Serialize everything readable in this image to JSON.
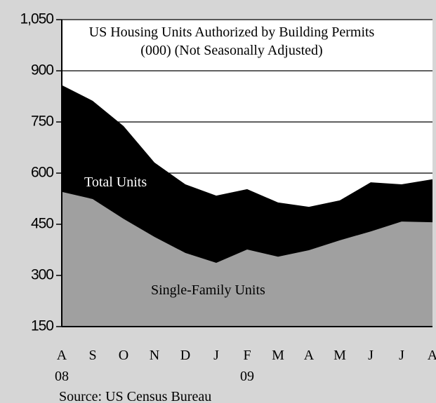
{
  "chart_data": {
    "type": "area",
    "title": "US Housing Units Authorized by Building Permits",
    "subtitle": "(000) (Not Seasonally Adjusted)",
    "categories": [
      "A",
      "S",
      "O",
      "N",
      "D",
      "J",
      "F",
      "M",
      "A",
      "M",
      "J",
      "J",
      "A"
    ],
    "x_group_labels": [
      "08",
      null,
      null,
      null,
      null,
      null,
      "09",
      null,
      null,
      null,
      null,
      null,
      null
    ],
    "series": [
      {
        "name": "Total Units",
        "color": "#000000",
        "values": [
          858,
          812,
          738,
          631,
          567,
          534,
          553,
          514,
          501,
          520,
          573,
          567,
          582
        ]
      },
      {
        "name": "Single-Family Units",
        "color": "#a0a0a0",
        "values": [
          545,
          524,
          466,
          413,
          366,
          337,
          376,
          355,
          374,
          403,
          429,
          458,
          456
        ]
      }
    ],
    "ylim": [
      150,
      1050
    ],
    "yticks": [
      {
        "value": 150,
        "label": "150"
      },
      {
        "value": 300,
        "label": "300"
      },
      {
        "value": 450,
        "label": "450"
      },
      {
        "value": 600,
        "label": "600"
      },
      {
        "value": 750,
        "label": "750"
      },
      {
        "value": 900,
        "label": "900"
      },
      {
        "value": 1050,
        "label": "1,050"
      }
    ],
    "grid": true,
    "source": "Source: US Census Bureau"
  }
}
